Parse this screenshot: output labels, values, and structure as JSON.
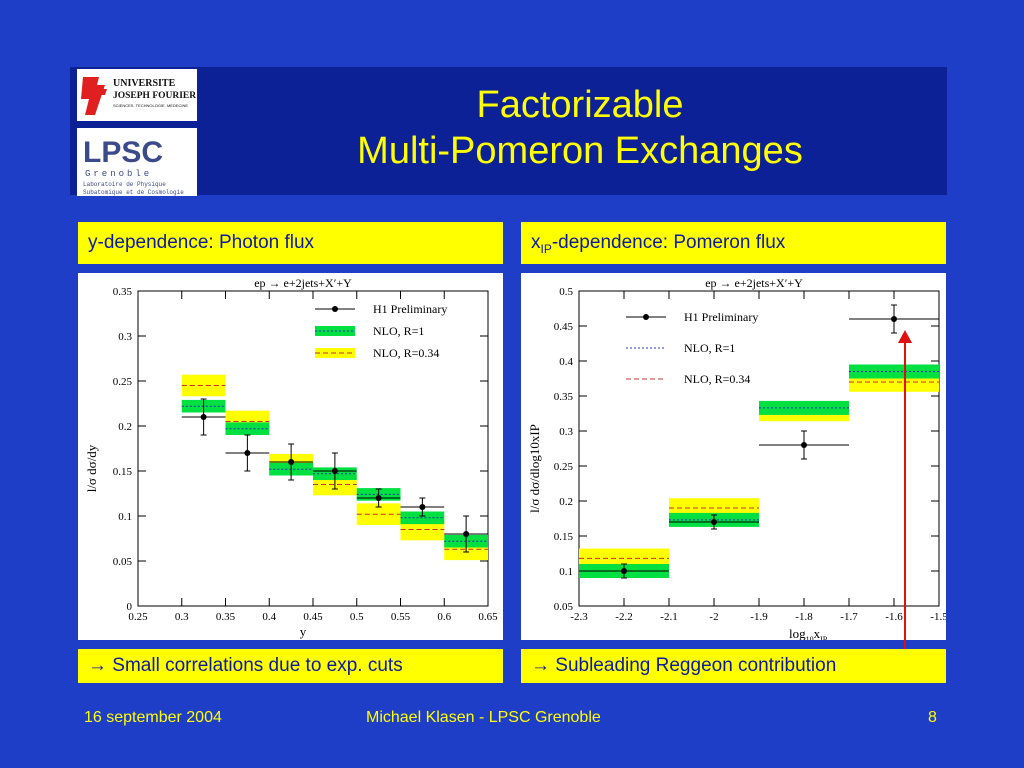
{
  "title": {
    "line1": "Factorizable",
    "line2": "Multi-Pomeron Exchanges"
  },
  "logos": {
    "ujf": {
      "lines": [
        "UNIVERSITE",
        "JOSEPH FOURIER",
        "SCIENCES. TECHNOLOGIE. MEDECINE"
      ]
    },
    "lpsc": {
      "name": "LPSC",
      "city": "Grenoble",
      "line1": "Laboratoire de Physique",
      "line2": "Subatomique et de Cosmologie"
    }
  },
  "left_header": "y-dependence: Photon flux",
  "right_header_prefix": "x",
  "right_header_sub": "IP",
  "right_header_rest": "-dependence: Pomeron flux",
  "left_footbox": "→ Small correlations due to exp. cuts",
  "right_footbox": "→ Subleading Reggeon contribution",
  "footer": {
    "date": "16 september 2004",
    "author": "Michael Klasen - LPSC Grenoble",
    "page": "8"
  },
  "colors": {
    "background": "#1f3ec8",
    "title_bar": "#0c2196",
    "highlight": "#ffff00",
    "nlo_r1": "#00e040",
    "nlo_r034": "#ffff00",
    "arrow": "#e01010"
  },
  "chart_data": [
    {
      "type": "scatter",
      "title": "ep → e+2jets+X′+Y",
      "xlabel": "y",
      "ylabel": "l/σ dσ/dy",
      "xlim": [
        0.25,
        0.65
      ],
      "ylim": [
        0,
        0.35
      ],
      "xticks": [
        "0.25",
        "0.3",
        "0.35",
        "0.4",
        "0.45",
        "0.5",
        "0.55",
        "0.6",
        "0.65"
      ],
      "yticks": [
        "0",
        "0.05",
        "0.1",
        "0.15",
        "0.2",
        "0.25",
        "0.3",
        "0.35"
      ],
      "legend": [
        "H1 Preliminary",
        "NLO, R=1",
        "NLO, R=0.34"
      ],
      "legend_position": "top-right",
      "series": [
        {
          "name": "H1 Preliminary",
          "x": [
            0.325,
            0.375,
            0.425,
            0.475,
            0.525,
            0.575,
            0.625
          ],
          "y": [
            0.21,
            0.17,
            0.16,
            0.15,
            0.12,
            0.11,
            0.08
          ],
          "yerr": [
            0.02,
            0.02,
            0.02,
            0.02,
            0.01,
            0.01,
            0.02
          ],
          "xhalf": 0.025
        },
        {
          "name": "NLO, R=1",
          "bins": [
            [
              0.3,
              0.35
            ],
            [
              0.35,
              0.4
            ],
            [
              0.4,
              0.45
            ],
            [
              0.45,
              0.5
            ],
            [
              0.5,
              0.55
            ],
            [
              0.55,
              0.6
            ],
            [
              0.6,
              0.65
            ]
          ],
          "y": [
            0.222,
            0.197,
            0.152,
            0.147,
            0.124,
            0.098,
            0.072
          ],
          "band": 0.007
        },
        {
          "name": "NLO, R=0.34",
          "bins": [
            [
              0.3,
              0.35
            ],
            [
              0.35,
              0.4
            ],
            [
              0.4,
              0.45
            ],
            [
              0.45,
              0.5
            ],
            [
              0.5,
              0.55
            ],
            [
              0.55,
              0.6
            ],
            [
              0.6,
              0.65
            ]
          ],
          "y": [
            0.245,
            0.205,
            0.157,
            0.135,
            0.102,
            0.085,
            0.063
          ],
          "band": 0.012
        }
      ]
    },
    {
      "type": "scatter",
      "title": "ep → e+2jets+X′+Y",
      "xlabel": "log10xIP",
      "ylabel": "l/σ dσ/dlog10xIP",
      "xlim": [
        -2.3,
        -1.5
      ],
      "ylim": [
        0.05,
        0.5
      ],
      "xticks": [
        "-2.3",
        "-2.2",
        "-2.1",
        "-2",
        "-1.9",
        "-1.8",
        "-1.7",
        "-1.6",
        "-1.5"
      ],
      "yticks": [
        "0.05",
        "0.1",
        "0.15",
        "0.2",
        "0.25",
        "0.3",
        "0.35",
        "0.4",
        "0.45",
        "0.5"
      ],
      "legend": [
        "H1 Preliminary",
        "NLO, R=1",
        "NLO, R=0.34"
      ],
      "legend_position": "top-left",
      "series": [
        {
          "name": "H1 Preliminary",
          "x": [
            -2.2,
            -2.0,
            -1.8,
            -1.6
          ],
          "y": [
            0.1,
            0.17,
            0.28,
            0.46
          ],
          "yerr": [
            0.01,
            0.01,
            0.02,
            0.02
          ],
          "xhalf": 0.1
        },
        {
          "name": "NLO, R=1",
          "bins": [
            [
              -2.3,
              -2.1
            ],
            [
              -2.1,
              -1.9
            ],
            [
              -1.9,
              -1.7
            ],
            [
              -1.7,
              -1.5
            ]
          ],
          "y": [
            0.1,
            0.173,
            0.333,
            0.385
          ],
          "band": 0.01
        },
        {
          "name": "NLO, R=0.34",
          "bins": [
            [
              -2.3,
              -2.1
            ],
            [
              -2.1,
              -1.9
            ],
            [
              -1.9,
              -1.7
            ],
            [
              -1.7,
              -1.5
            ]
          ],
          "y": [
            0.118,
            0.19,
            0.328,
            0.37
          ],
          "band": 0.014
        }
      ]
    }
  ]
}
